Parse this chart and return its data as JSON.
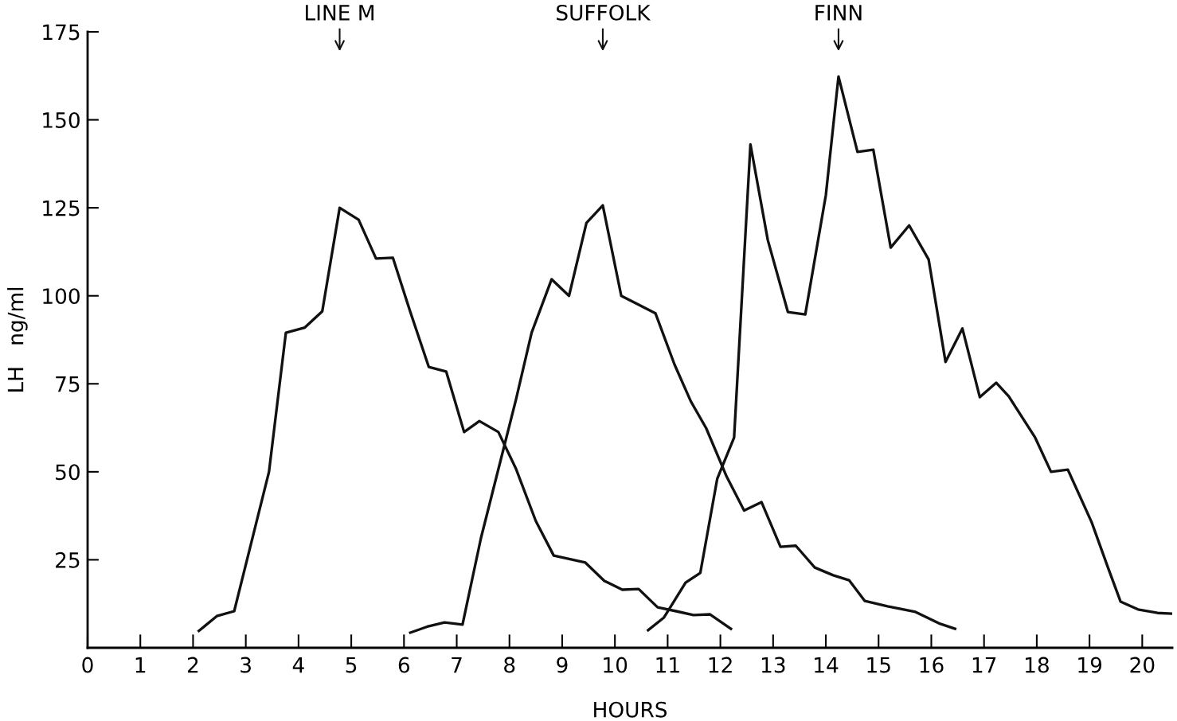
{
  "chart_data": {
    "type": "line",
    "xlabel": "HOURS",
    "ylabel": "LH   ng/ml",
    "series": [
      {
        "color": "#111111",
        "x": [
          2.11,
          2.45,
          2.78,
          3.44,
          3.76,
          4.12,
          4.45,
          4.78,
          5.14,
          5.47,
          5.79,
          6.12,
          6.47,
          6.8,
          7.14,
          7.43,
          7.79,
          8.12,
          8.5,
          8.84,
          9.44,
          9.8,
          10.14,
          10.45,
          10.81,
          11.16,
          11.49,
          11.8,
          12.2
        ],
        "values": [
          4.8,
          9,
          10.4,
          50,
          89.5,
          91,
          95.6,
          125,
          121.6,
          110.6,
          110.8,
          95.4,
          79.8,
          78.5,
          61.3,
          64.4,
          61.3,
          51,
          36,
          26.2,
          24.2,
          19,
          16.5,
          16.7,
          11.5,
          10.4,
          9.3,
          9.5,
          5.4
        ]
      },
      {
        "color": "#111111",
        "x": [
          6.12,
          6.44,
          6.77,
          7.11,
          7.46,
          8.12,
          8.42,
          8.8,
          9.13,
          9.46,
          9.77,
          10.12,
          10.38,
          10.77,
          11.13,
          11.44,
          11.73,
          12.12,
          12.45,
          12.78,
          13.14,
          13.43,
          13.79,
          14.14,
          14.44,
          14.74,
          15.17,
          15.7,
          16.17,
          16.45
        ],
        "values": [
          4.3,
          6,
          7.2,
          6.6,
          31.2,
          70.3,
          89.5,
          104.7,
          100,
          120.7,
          125.7,
          100,
          98,
          95,
          80.5,
          70,
          62.4,
          48.6,
          39,
          41.4,
          28.7,
          29,
          22.8,
          20.6,
          19.2,
          13.3,
          11.8,
          10.2,
          6.8,
          5.4
        ]
      },
      {
        "color": "#111111",
        "x": [
          10.63,
          10.93,
          11.34,
          11.62,
          11.94,
          12.26,
          12.57,
          12.9,
          13.28,
          13.61,
          14.0,
          14.24,
          14.6,
          14.9,
          15.23,
          15.58,
          15.95,
          16.27,
          16.59,
          16.92,
          17.23,
          17.47,
          17.97,
          18.27,
          18.59,
          19.04,
          19.35,
          19.59,
          19.92,
          20.29,
          20.57
        ],
        "values": [
          5,
          8.6,
          18.5,
          21.3,
          48,
          59.7,
          143,
          115.8,
          95.4,
          94.7,
          128.6,
          162.3,
          140.9,
          141.5,
          113.7,
          120,
          110.3,
          81.2,
          90.7,
          71.2,
          75.3,
          71.4,
          59.7,
          50,
          50.6,
          35.7,
          22.8,
          13.1,
          10.9,
          9.9,
          9.7
        ]
      }
    ],
    "annotations": [
      "LINE M",
      "SUFFOLK",
      "FINN"
    ],
    "xlim": [
      0,
      20.57
    ],
    "ylim": [
      0,
      175
    ],
    "xticks": [
      0,
      1,
      2,
      3,
      4,
      5,
      6,
      7,
      8,
      9,
      10,
      11,
      12,
      13,
      14,
      15,
      16,
      17,
      18,
      19,
      20
    ],
    "yticks": [
      25,
      50,
      75,
      100,
      125,
      150,
      175
    ],
    "grid": false,
    "marker": "none",
    "line_style": "solid"
  }
}
